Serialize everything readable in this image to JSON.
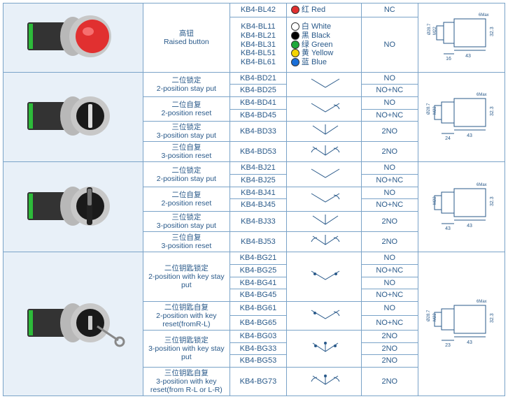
{
  "row1": {
    "name_cn": "高钮",
    "name_en": "Raised button",
    "top_model": "KB4-BL42",
    "top_color_cn": "红 Red",
    "top_color_hex": "#e13030",
    "top_contact": "NC",
    "models": [
      "KB4-BL11",
      "KB4-BL21",
      "KB4-BL31",
      "KB4-BL51",
      "KB4-BL61"
    ],
    "colors": [
      {
        "cn": "白 White",
        "hex": "#ffffff"
      },
      {
        "cn": "黑 Black",
        "hex": "#000000"
      },
      {
        "cn": "绿 Green",
        "hex": "#1fa83a"
      },
      {
        "cn": "黄 Yellow",
        "hex": "#f4d400"
      },
      {
        "cn": "蓝 Blue",
        "hex": "#1a6fd8"
      }
    ],
    "contact": "NO",
    "drawing": {
      "d1": "16",
      "d2": "43",
      "h": "32.3",
      "dia1": "Ø28.7",
      "dia2": "M22",
      "top": "6Max"
    }
  },
  "row2": {
    "items": [
      {
        "cn": "二位锁定",
        "en": "2-position stay put",
        "m": [
          "KB4-BD21",
          "KB4-BD25"
        ],
        "c": [
          "NO",
          "NO+NC"
        ],
        "sym": "v"
      },
      {
        "cn": "二位自复",
        "en": "2-position reset",
        "m": [
          "KB4-BD41",
          "KB4-BD45"
        ],
        "c": [
          "NO",
          "NO+NC"
        ],
        "sym": "vr"
      },
      {
        "cn": "三位锁定",
        "en": "3-position stay put",
        "m": [
          "KB4-BD33"
        ],
        "c": [
          "2NO"
        ],
        "sym": "v3"
      },
      {
        "cn": "三位自复",
        "en": "3-position reset",
        "m": [
          "KB4-BD53"
        ],
        "c": [
          "2NO"
        ],
        "sym": "v3r"
      }
    ],
    "drawing": {
      "d1": "24",
      "d2": "43",
      "h": "32.3",
      "dia1": "Ø28.7",
      "dia2": "M22",
      "top": "6Max"
    }
  },
  "row3": {
    "items": [
      {
        "cn": "二位锁定",
        "en": "2-position stay put",
        "m": [
          "KB4-BJ21",
          "KB4-BJ25"
        ],
        "c": [
          "NO",
          "NO+NC"
        ],
        "sym": "v"
      },
      {
        "cn": "二位自复",
        "en": "2-position reset",
        "m": [
          "KB4-BJ41",
          "KB4-BJ45"
        ],
        "c": [
          "NO",
          "NO+NC"
        ],
        "sym": "vr"
      },
      {
        "cn": "三位锁定",
        "en": "3-position stay put",
        "m": [
          "KB4-BJ33"
        ],
        "c": [
          "2NO"
        ],
        "sym": "v3"
      },
      {
        "cn": "三位自复",
        "en": "3-position reset",
        "m": [
          "KB4-BJ53"
        ],
        "c": [
          "2NO"
        ],
        "sym": "v3r"
      }
    ],
    "drawing": {
      "d1": "43",
      "d2": "43",
      "h": "32.3",
      "dia1": "",
      "dia2": "M22",
      "top": "6Max"
    }
  },
  "row4": {
    "items": [
      {
        "cn": "二位钥匙锁定",
        "en": "2-position with key stay put",
        "m": [
          "KB4-BG21",
          "KB4-BG25",
          "KB4-BG41",
          "KB4-BG45"
        ],
        "c": [
          "NO",
          "NO+NC",
          "NO",
          "NO+NC"
        ],
        "sym": "vk"
      },
      {
        "cn": "二位钥匙自复",
        "en": "2-position with key reset(fromR-L)",
        "m": [
          "KB4-BG61",
          "KB4-BG65"
        ],
        "c": [
          "NO",
          "NO+NC"
        ],
        "sym": "vkr"
      },
      {
        "cn": "三位钥匙锁定",
        "en": "3-position with key stay put",
        "m": [
          "KB4-BG03",
          "KB4-BG33",
          "KB4-BG53"
        ],
        "c": [
          "2NO",
          "2NO",
          "2NO"
        ],
        "sym": "vk3"
      },
      {
        "cn": "三位钥匙自复",
        "en": "3-position with key reset(from R-L or L-R)",
        "m": [
          "KB4-BG73"
        ],
        "c": [
          "2NO"
        ],
        "sym": "vk3r"
      }
    ],
    "drawing": {
      "d1": "23",
      "d2": "43",
      "h": "32.3",
      "dia1": "Ø28.7",
      "dia2": "M22",
      "top": "6Max"
    }
  }
}
